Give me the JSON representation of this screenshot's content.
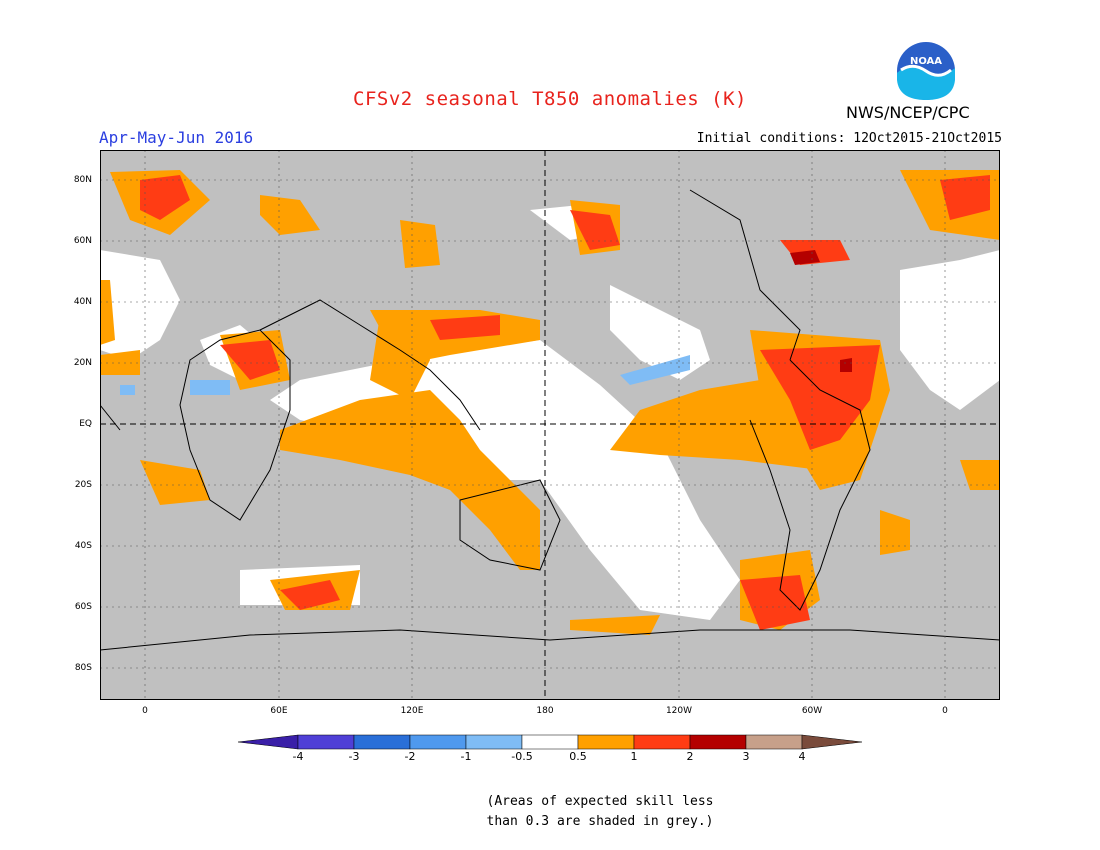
{
  "header": {
    "title": "CFSv2 seasonal T850 anomalies (K)",
    "period": "Apr-May-Jun 2016",
    "initial_conditions": "Initial conditions: 12Oct2015-21Oct2015",
    "agency": "NWS/NCEP/CPC",
    "logo_text": "NOAA"
  },
  "map": {
    "lat_labels": [
      "80N",
      "60N",
      "40N",
      "20N",
      "EQ",
      "20S",
      "40S",
      "60S",
      "80S"
    ],
    "lon_labels": [
      "0",
      "60E",
      "120E",
      "180",
      "120W",
      "60W",
      "0"
    ],
    "grid": true,
    "dashed_reference_lines": [
      "EQ",
      "180"
    ],
    "skill_mask_color": "#c0c0c0"
  },
  "legend": {
    "labels": [
      "-4",
      "-3",
      "-2",
      "-1",
      "-0.5",
      "0.5",
      "1",
      "2",
      "3",
      "4"
    ],
    "colors": [
      "#3a1fa8",
      "#4f3fd6",
      "#2a6fd8",
      "#4f99ee",
      "#7fbcf5",
      "#ffffff",
      "#ffa000",
      "#ff3c14",
      "#b40000",
      "#c7a08a",
      "#7a4b3b"
    ]
  },
  "note": {
    "line1": "(Areas of expected skill less",
    "line2": "than 0.3 are shaded in grey.)"
  }
}
